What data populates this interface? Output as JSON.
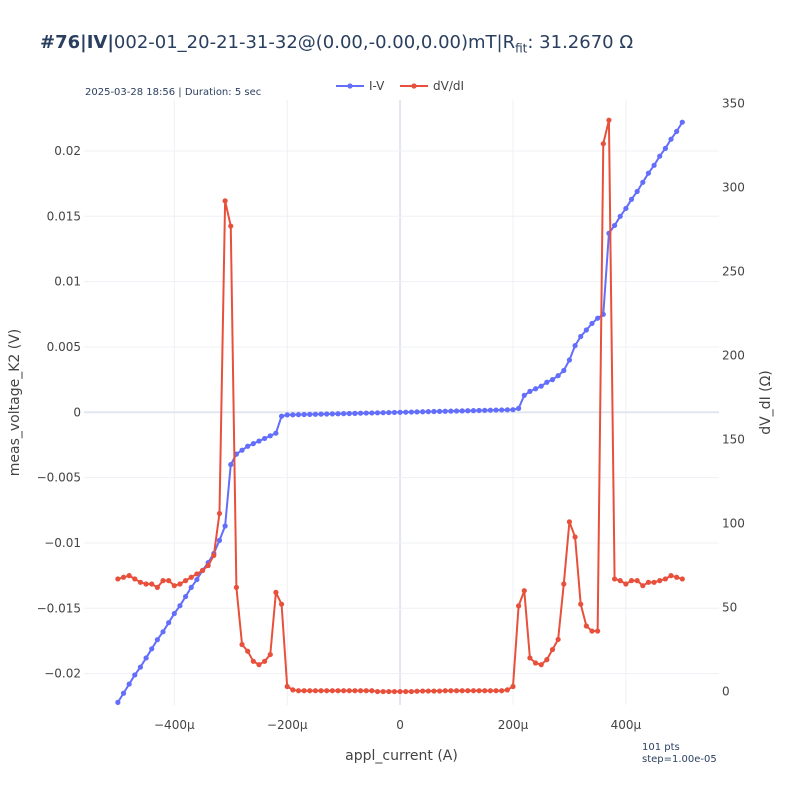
{
  "header": {
    "title_prefix": "#76|IV|",
    "title_main": "002-01_20-21-31-32@(0.00,-0.00,0.00)mT|R",
    "title_sub": "fit",
    "title_suffix": ": 31.2670 Ω",
    "meta": "2025-03-28 18:56 | Duration: 5 sec",
    "footnote_pts": "101 pts",
    "footnote_step": "step=1.00e-05"
  },
  "colors": {
    "iv": "#636efa",
    "dvdi": "#e8503c",
    "grid": "#eef0f6",
    "zeroline": "#e2e6f0"
  },
  "chart_data": {
    "type": "line",
    "title": "#76|IV|002-01_20-21-31-32@(0.00,-0.00,0.00)mT|Rfit: 31.2670 Ω",
    "xlabel": "appl_current (A)",
    "ylabel": "meas_voltage_K2 (V)",
    "y2label": "dV_dI (Ω)",
    "xlim": [
      -0.00056,
      0.000565
    ],
    "ylim": [
      -0.0224,
      0.0239
    ],
    "y2lim": [
      -8,
      352
    ],
    "x_ticks": [
      -0.0004,
      -0.0002,
      0,
      0.0002,
      0.0004
    ],
    "x_tick_labels": [
      "−400µ",
      "−200µ",
      "0",
      "200µ",
      "400µ"
    ],
    "y_ticks": [
      -0.02,
      -0.015,
      -0.01,
      -0.005,
      0,
      0.005,
      0.01,
      0.015,
      0.02
    ],
    "y_tick_labels": [
      "−0.02",
      "−0.015",
      "−0.01",
      "−0.005",
      "0",
      "0.005",
      "0.01",
      "0.015",
      "0.02"
    ],
    "y2_ticks": [
      0,
      50,
      100,
      150,
      200,
      250,
      300,
      350
    ],
    "y2_tick_labels": [
      "0",
      "50",
      "100",
      "150",
      "200",
      "250",
      "300",
      "350"
    ],
    "legend": {
      "placement": "top-center"
    },
    "series": [
      {
        "name": "I-V",
        "axis": "y",
        "x_start": -0.0005,
        "x_step": 1e-05,
        "values": [
          -0.0222,
          -0.0215,
          -0.0208,
          -0.0201,
          -0.0195,
          -0.0188,
          -0.0181,
          -0.0174,
          -0.0168,
          -0.0161,
          -0.0154,
          -0.0148,
          -0.0141,
          -0.0134,
          -0.0128,
          -0.0121,
          -0.0115,
          -0.0108,
          -0.0098,
          -0.0087,
          -0.004,
          -0.0032,
          -0.0029,
          -0.0026,
          -0.0024,
          -0.0022,
          -0.002,
          -0.0018,
          -0.0016,
          -0.0003,
          -0.0002,
          -0.00019,
          -0.00018,
          -0.00017,
          -0.00016,
          -0.00015,
          -0.00014,
          -0.00013,
          -0.00012,
          -0.00011,
          -0.0001,
          -9e-05,
          -8e-05,
          -7e-05,
          -6e-05,
          -5e-05,
          -4e-05,
          -3e-05,
          -2e-05,
          -1e-05,
          0,
          1e-05,
          2e-05,
          3e-05,
          4e-05,
          5e-05,
          6e-05,
          7e-05,
          8e-05,
          9e-05,
          0.0001,
          0.00011,
          0.00012,
          0.00013,
          0.00014,
          0.00015,
          0.00016,
          0.00017,
          0.00018,
          0.00019,
          0.0002,
          0.0003,
          0.0013,
          0.0016,
          0.0018,
          0.002,
          0.0023,
          0.0025,
          0.0028,
          0.0032,
          0.004,
          0.0051,
          0.0058,
          0.0063,
          0.0068,
          0.0072,
          0.0075,
          0.0137,
          0.0143,
          0.015,
          0.0156,
          0.0163,
          0.0169,
          0.0176,
          0.0183,
          0.0189,
          0.0196,
          0.0202,
          0.0209,
          0.0215,
          0.0222
        ]
      },
      {
        "name": "dV/dI",
        "axis": "y2",
        "x_start": -0.0005,
        "x_step": 1e-05,
        "values": [
          67,
          68,
          69,
          67,
          65,
          64,
          64,
          62,
          66,
          66,
          63,
          64,
          66,
          68,
          70,
          72,
          75,
          81,
          106,
          292,
          277,
          62,
          28,
          24,
          18,
          16,
          18,
          22,
          59,
          52,
          3,
          1,
          0.5,
          0.5,
          0.5,
          0.5,
          0.5,
          0.5,
          0.5,
          0.5,
          0.5,
          0.5,
          0.5,
          0.5,
          0.5,
          0.5,
          0,
          0,
          0,
          0,
          0,
          0,
          0,
          0.2,
          0.3,
          0.3,
          0.3,
          0.3,
          0.5,
          0.5,
          0.5,
          0.5,
          0.5,
          0.5,
          0.5,
          0.5,
          0.5,
          0.5,
          0.5,
          1,
          3,
          51,
          60,
          20,
          17,
          16,
          19,
          25,
          31,
          64,
          101,
          92,
          52,
          39,
          36,
          36,
          326,
          340,
          67,
          66,
          64,
          66,
          66,
          63,
          65,
          65,
          66,
          67,
          69,
          68,
          67
        ]
      }
    ]
  }
}
